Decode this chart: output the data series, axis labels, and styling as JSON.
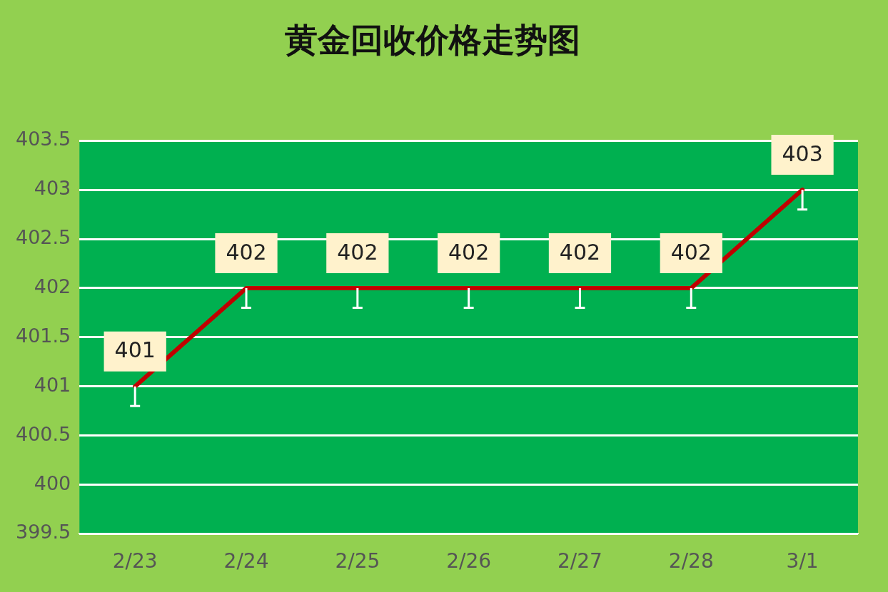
{
  "chart_data": {
    "type": "line",
    "title": "黄金回收价格走势图",
    "categories": [
      "2/23",
      "2/24",
      "2/25",
      "2/26",
      "2/27",
      "2/28",
      "3/1"
    ],
    "series": [
      {
        "color": "#c00000",
        "values": [
          401,
          402,
          402,
          402,
          402,
          402,
          403
        ],
        "errors": [
          [
            400.8,
            401
          ],
          [
            401.8,
            402
          ],
          [
            401.8,
            402
          ],
          [
            401.8,
            402
          ],
          [
            401.8,
            402
          ],
          [
            401.8,
            402
          ],
          [
            402.8,
            403
          ]
        ]
      }
    ],
    "ylim": [
      399.5,
      403.5
    ],
    "yticks": [
      399.5,
      400,
      400.5,
      401,
      401.5,
      402,
      402.5,
      403,
      403.5
    ],
    "grid": "y",
    "legend": false,
    "marker": "none",
    "line_style": "solid",
    "data_labels": true
  }
}
